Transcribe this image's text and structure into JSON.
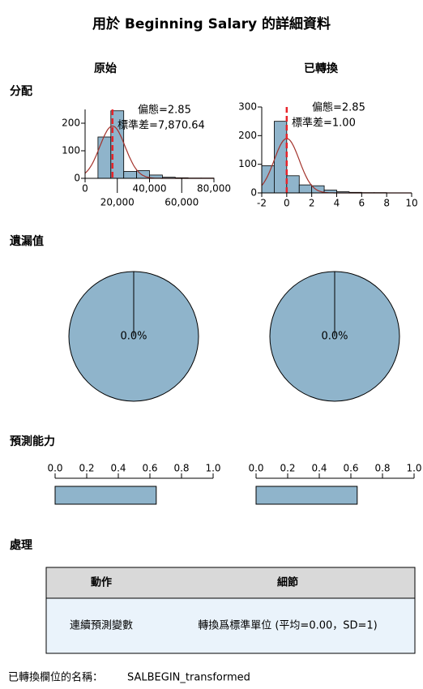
{
  "title": "用於 Beginning Salary 的詳細資料",
  "columns": [
    "原始",
    "已轉換"
  ],
  "sections": [
    "分配",
    "遺漏值",
    "預測能力",
    "處理"
  ],
  "chart_data": [
    {
      "type": "histogram",
      "bins": [
        0,
        8000,
        16000,
        24000,
        32000,
        40000,
        48000,
        56000,
        64000,
        72000,
        80000
      ],
      "values": [
        0,
        150,
        245,
        25,
        28,
        12,
        4,
        2,
        1,
        1
      ],
      "color": "#8fb4cb",
      "xlim": [
        0,
        80000
      ],
      "xticks": [
        0,
        {
          "value": 20000,
          "label": "20,000"
        },
        {
          "value": 40000,
          "label": "40,000"
        },
        {
          "value": 60000,
          "label": "60,000"
        },
        {
          "value": 80000,
          "label": "80,000"
        }
      ],
      "ylim": [
        0,
        250
      ],
      "yticks": [
        0,
        100,
        200
      ],
      "mean": 17016,
      "stats": [
        {
          "value": 2.85,
          "label": "偏態=2.85"
        },
        {
          "value": 7870.64,
          "label": "標準差=7,870.64"
        }
      ]
    },
    {
      "type": "histogram",
      "bins": [
        -2,
        -1,
        0,
        1,
        2,
        3,
        4,
        5,
        6,
        7,
        8
      ],
      "values": [
        95,
        250,
        60,
        28,
        25,
        10,
        4,
        2,
        1,
        1
      ],
      "color": "#8fb4cb",
      "xlim": [
        -2,
        10
      ],
      "xticks": [
        -2,
        0,
        2,
        4,
        6,
        8,
        10
      ],
      "ylim": [
        0,
        300
      ],
      "yticks": [
        0,
        100,
        200,
        300
      ],
      "mean": 0,
      "stats": [
        {
          "value": 2.85,
          "label": "偏態=2.85"
        },
        {
          "value": 1.0,
          "label": "標準差=1.00"
        }
      ]
    },
    {
      "type": "pie",
      "values": [
        0
      ],
      "value_labels": [
        "0.0%"
      ],
      "color": "#8fb4cb"
    },
    {
      "type": "pie",
      "values": [
        0
      ],
      "value_labels": [
        "0.0%"
      ],
      "color": "#8fb4cb"
    },
    {
      "type": "bar",
      "values": [
        0.64
      ],
      "color": "#8fb4cb",
      "xlim": [
        0,
        1
      ],
      "xticks": [
        {
          "value": 0,
          "label": "0.0"
        },
        {
          "value": 0.2,
          "label": "0.2"
        },
        {
          "value": 0.4,
          "label": "0.4"
        },
        {
          "value": 0.6,
          "label": "0.6"
        },
        {
          "value": 0.8,
          "label": "0.8"
        },
        {
          "value": 1,
          "label": "1.0"
        }
      ]
    },
    {
      "type": "bar",
      "values": [
        0.64
      ],
      "color": "#8fb4cb",
      "xlim": [
        0,
        1
      ],
      "xticks": [
        {
          "value": 0,
          "label": "0.0"
        },
        {
          "value": 0.2,
          "label": "0.2"
        },
        {
          "value": 0.4,
          "label": "0.4"
        },
        {
          "value": 0.6,
          "label": "0.6"
        },
        {
          "value": 0.8,
          "label": "0.8"
        },
        {
          "value": 1,
          "label": "1.0"
        }
      ]
    }
  ],
  "table": {
    "header": [
      "動作",
      "細節"
    ],
    "rows": [
      [
        "連續預測變數",
        "轉換爲標準單位 (平均=0.00，SD=1)"
      ]
    ]
  },
  "footer": {
    "label": "已轉換欄位的名稱：",
    "value": "SALBEGIN_transformed"
  }
}
